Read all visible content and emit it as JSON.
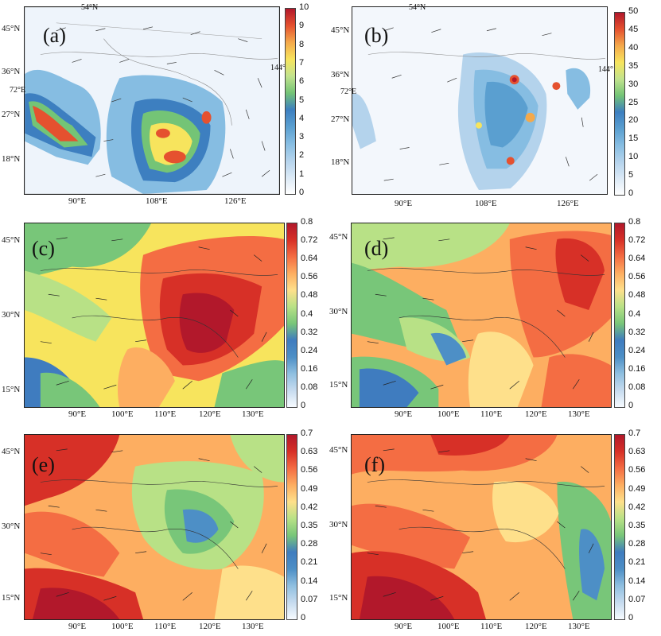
{
  "colors": {
    "precip_scale": [
      "#ffffff",
      "#dbe9f6",
      "#b4d3ec",
      "#86bde2",
      "#5a9fd0",
      "#3d7fc0",
      "#74c476",
      "#c2e38e",
      "#f7e45d",
      "#f4a94b",
      "#e5512f",
      "#b2182b"
    ],
    "aod_scale": [
      "#f7fbff",
      "#c6dbef",
      "#8fbfe0",
      "#4d8fc6",
      "#3f7cbf",
      "#78c679",
      "#b8e186",
      "#fee08b",
      "#fdae61",
      "#f46d43",
      "#d73027",
      "#b2182b"
    ]
  },
  "panels": [
    {
      "id": "a",
      "label": "(a)",
      "colorbar_ticks": [
        "10",
        "9",
        "8",
        "7",
        "6",
        "5",
        "4",
        "3",
        "2",
        "1",
        "0"
      ],
      "lat_labels": [
        "45°N",
        "36°N",
        "27°N",
        "18°N"
      ],
      "lon_labels": [
        "90°E",
        "108°E",
        "126°E"
      ],
      "margin_labels": [
        "54°N",
        "72°E",
        "144°"
      ]
    },
    {
      "id": "b",
      "label": "(b)",
      "colorbar_ticks": [
        "50",
        "45",
        "40",
        "35",
        "30",
        "25",
        "20",
        "15",
        "10",
        "5",
        "0"
      ],
      "lat_labels": [
        "45°N",
        "36°N",
        "27°N",
        "18°N"
      ],
      "lon_labels": [
        "90°E",
        "108°E",
        "126°E"
      ],
      "margin_labels": [
        "54°N",
        "72°E",
        "144°"
      ]
    },
    {
      "id": "c",
      "label": "(c)",
      "colorbar_ticks": [
        "0.8",
        "0.72",
        "0.64",
        "0.56",
        "0.48",
        "0.4",
        "0.32",
        "0.24",
        "0.16",
        "0.08",
        "0"
      ],
      "lat_labels": [
        "45°N",
        "30°N",
        "15°N"
      ],
      "lon_labels": [
        "90°E",
        "100°E",
        "110°E",
        "120°E",
        "130°E"
      ]
    },
    {
      "id": "d",
      "label": "(d)",
      "colorbar_ticks": [
        "0.8",
        "0.72",
        "0.64",
        "0.56",
        "0.48",
        "0.4",
        "0.32",
        "0.24",
        "0.16",
        "0.08",
        "0"
      ],
      "lat_labels": [
        "45°N",
        "30°N",
        "15°N"
      ],
      "lon_labels": [
        "90°E",
        "100°E",
        "110°E",
        "120°E",
        "130°E"
      ]
    },
    {
      "id": "e",
      "label": "(e)",
      "colorbar_ticks": [
        "0.7",
        "0.63",
        "0.56",
        "0.49",
        "0.42",
        "0.35",
        "0.28",
        "0.21",
        "0.14",
        "0.07",
        "0"
      ],
      "lat_labels": [
        "45°N",
        "30°N",
        "15°N"
      ],
      "lon_labels": [
        "90°E",
        "100°E",
        "110°E",
        "120°E",
        "130°E"
      ]
    },
    {
      "id": "f",
      "label": "(f)",
      "colorbar_ticks": [
        "0.7",
        "0.63",
        "0.56",
        "0.49",
        "0.42",
        "0.35",
        "0.28",
        "0.21",
        "0.14",
        "0.07",
        "0"
      ],
      "lat_labels": [
        "45°N",
        "30°N",
        "15°N"
      ],
      "lon_labels": [
        "90°E",
        "100°E",
        "110°E",
        "120°E",
        "130°E"
      ]
    }
  ]
}
